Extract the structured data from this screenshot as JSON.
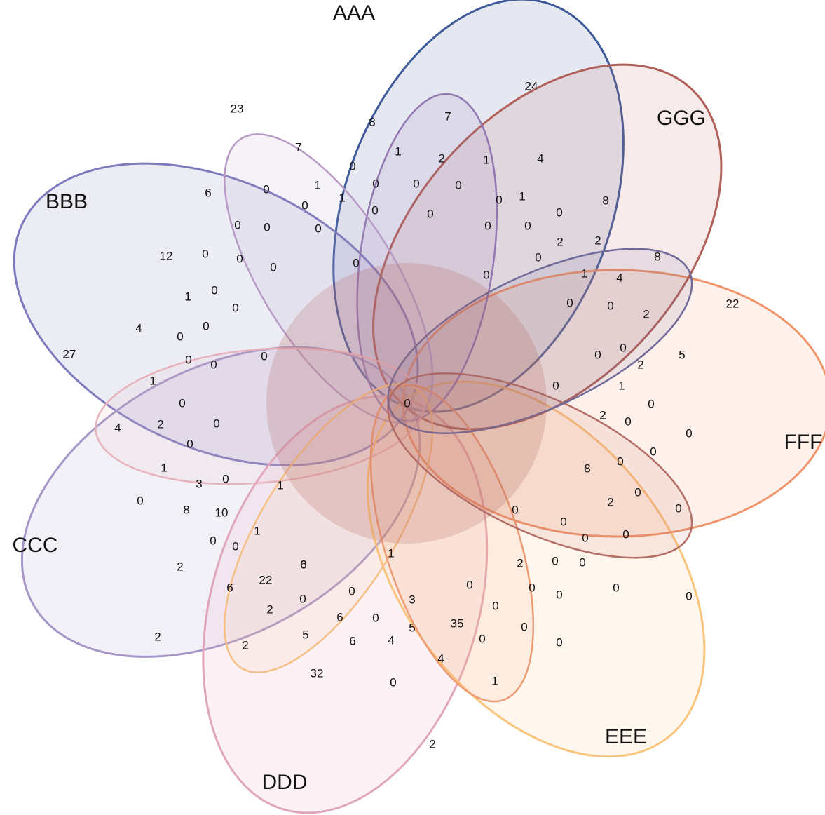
{
  "sets": [
    {
      "name": "AAA",
      "color": "#3f5a9a",
      "fill": "#4f659f"
    },
    {
      "name": "BBB",
      "color": "#7d7bbd",
      "fill": "#8281bd"
    },
    {
      "name": "CCC",
      "color": "#a596c7",
      "fill": "#ad9fce"
    },
    {
      "name": "DDD",
      "color": "#e0a6bb",
      "fill": "#eaa9c0"
    },
    {
      "name": "EEE",
      "color": "#fbc47c",
      "fill": "#fcc98a"
    },
    {
      "name": "FFF",
      "color": "#f0956b",
      "fill": "#f5a07a"
    },
    {
      "name": "GGG",
      "color": "#b06058",
      "fill": "#c07a72"
    }
  ],
  "inner_sets": [
    {
      "color": "#9276b2"
    },
    {
      "color": "#b79bc6"
    },
    {
      "color": "#e8b2bd"
    },
    {
      "color": "#f6bf86"
    },
    {
      "color": "#ee9a72"
    },
    {
      "color": "#b46e66"
    },
    {
      "color": "#6f6a9a"
    }
  ],
  "counts": [
    "23",
    "24",
    "7",
    "8",
    "7",
    "1",
    "2",
    "1",
    "4",
    "0",
    "0",
    "1",
    "0",
    "0",
    "0",
    "1",
    "6",
    "0",
    "1",
    "0",
    "0",
    "0",
    "0",
    "0",
    "0",
    "0",
    "0",
    "8",
    "0",
    "0",
    "0",
    "0",
    "2",
    "2",
    "12",
    "0",
    "0",
    "0",
    "0",
    "0",
    "1",
    "4",
    "8",
    "1",
    "0",
    "0",
    "0",
    "0",
    "2",
    "22",
    "4",
    "0",
    "0",
    "0",
    "0",
    "0",
    "2",
    "5",
    "27",
    "0",
    "0",
    "1",
    "0",
    "0",
    "2",
    "1",
    "0",
    "4",
    "2",
    "0",
    "0",
    "0",
    "0",
    "8",
    "1",
    "0",
    "3",
    "0",
    "2",
    "0",
    "0",
    "1",
    "8",
    "10",
    "0",
    "0",
    "0",
    "0",
    "0",
    "1",
    "1",
    "0",
    "0",
    "0",
    "0",
    "0",
    "2",
    "6",
    "22",
    "6",
    "2",
    "0",
    "0",
    "0",
    "0",
    "2",
    "0",
    "0",
    "3",
    "0",
    "0",
    "0",
    "0",
    "0",
    "2",
    "2",
    "5",
    "32",
    "6",
    "4",
    "4",
    "0",
    "1",
    "2",
    "6",
    "5",
    "35",
    "0",
    "0",
    "0",
    "0"
  ]
}
